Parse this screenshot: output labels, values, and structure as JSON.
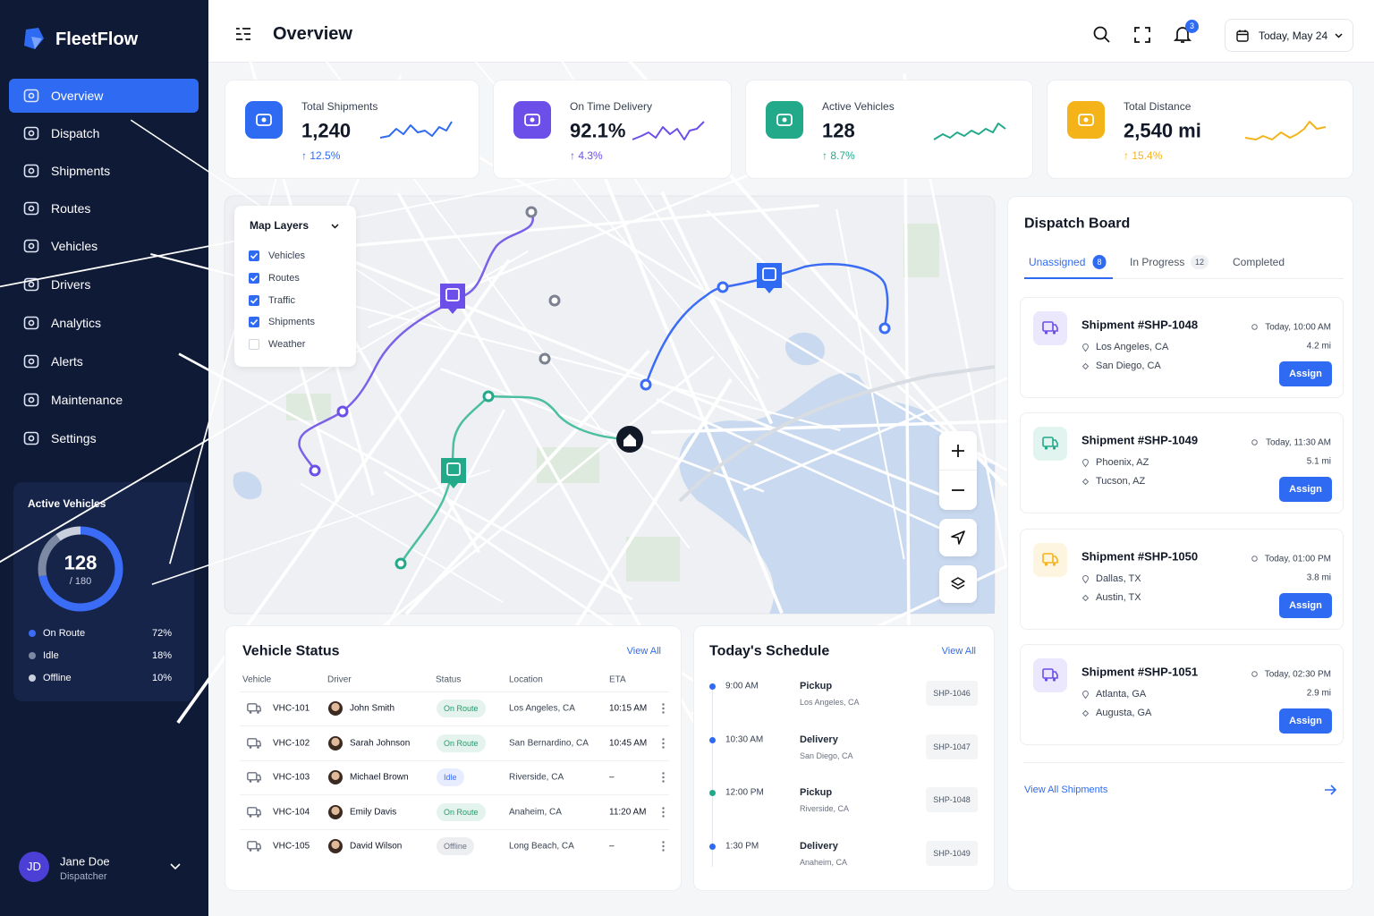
{
  "brand": "FleetFlow",
  "nav": [
    "Overview",
    "Dispatch",
    "Shipments",
    "Routes",
    "Vehicles",
    "Drivers",
    "Analytics",
    "Alerts",
    "Maintenance",
    "Settings"
  ],
  "sidebar_widget": {
    "title": "Active Vehicles",
    "value": "128",
    "total_label": "/ 180",
    "names": [
      "On Route",
      "Idle",
      "Offline"
    ],
    "values": [
      72,
      18,
      10
    ],
    "value_labels": [
      "72%",
      "18%",
      "10%"
    ],
    "colors": [
      "#3b6cf6",
      "#7d88a3",
      "#c9cfdc"
    ]
  },
  "user": {
    "initials": "JD",
    "name": "Jane Doe",
    "role": "Dispatcher"
  },
  "header": {
    "title": "Overview",
    "notifications": "3",
    "date": "Today, May 24"
  },
  "kpis": [
    {
      "label": "Total Shipments",
      "value": "1,240",
      "change": "↑ 12.5%",
      "color": "#2f6bf2"
    },
    {
      "label": "On Time Delivery",
      "value": "92.1%",
      "change": "↑ 4.3%",
      "color": "#6c4ee8"
    },
    {
      "label": "Active Vehicles",
      "value": "128",
      "change": "↑ 8.7%",
      "color": "#22a98a"
    },
    {
      "label": "Total Distance",
      "value": "2,540 mi",
      "change": "↑ 15.4%",
      "color": "#f5b31a"
    }
  ],
  "map": {
    "layers_title": "Map Layers",
    "layers": [
      {
        "label": "Vehicles",
        "checked": true
      },
      {
        "label": "Routes",
        "checked": true
      },
      {
        "label": "Traffic",
        "checked": true
      },
      {
        "label": "Shipments",
        "checked": true
      },
      {
        "label": "Weather",
        "checked": false
      }
    ]
  },
  "vehicle_status": {
    "title": "Vehicle Status",
    "view_all": "View All",
    "columns": [
      "Vehicle",
      "Driver",
      "Status",
      "Location",
      "ETA"
    ],
    "rows": [
      {
        "vehicle": "VHC-101",
        "driver": "John Smith",
        "status": "On Route",
        "status_color": "#1f9d6c",
        "location": "Los Angeles, CA",
        "eta": "10:15 AM"
      },
      {
        "vehicle": "VHC-102",
        "driver": "Sarah Johnson",
        "status": "On Route",
        "status_color": "#1f9d6c",
        "location": "San Bernardino, CA",
        "eta": "10:45 AM"
      },
      {
        "vehicle": "VHC-103",
        "driver": "Michael Brown",
        "status": "Idle",
        "status_color": "#3b6cf6",
        "location": "Riverside, CA",
        "eta": "–"
      },
      {
        "vehicle": "VHC-104",
        "driver": "Emily Davis",
        "status": "On Route",
        "status_color": "#1f9d6c",
        "location": "Anaheim, CA",
        "eta": "11:20 AM"
      },
      {
        "vehicle": "VHC-105",
        "driver": "David Wilson",
        "status": "Offline",
        "status_color": "#6b7280",
        "location": "Long Beach, CA",
        "eta": "–"
      }
    ]
  },
  "schedule": {
    "title": "Today's Schedule",
    "view_all": "View All",
    "items": [
      {
        "time": "9:00 AM",
        "type": "Pickup",
        "place": "Los Angeles, CA",
        "id": "SHP-1046",
        "color": "#2f6bf2"
      },
      {
        "time": "10:30 AM",
        "type": "Delivery",
        "place": "San Diego, CA",
        "id": "SHP-1047",
        "color": "#2f6bf2"
      },
      {
        "time": "12:00 PM",
        "type": "Pickup",
        "place": "Riverside, CA",
        "id": "SHP-1048",
        "color": "#22a98a"
      },
      {
        "time": "1:30 PM",
        "type": "Delivery",
        "place": "Anaheim, CA",
        "id": "SHP-1049",
        "color": "#2f6bf2"
      }
    ]
  },
  "dispatch": {
    "title": "Dispatch Board",
    "tabs": [
      {
        "label": "Unassigned",
        "count": "8"
      },
      {
        "label": "In Progress",
        "count": "12"
      },
      {
        "label": "Completed"
      }
    ],
    "shipments": [
      {
        "title": "Shipment #SHP-1048",
        "time": "Today, 10:00 AM",
        "distance": "4.2 mi",
        "from": "Los Angeles, CA",
        "to": "San Diego, CA",
        "action": "Assign",
        "color": "#6c4ee8"
      },
      {
        "title": "Shipment #SHP-1049",
        "time": "Today, 11:30 AM",
        "distance": "5.1 mi",
        "from": "Phoenix, AZ",
        "to": "Tucson, AZ",
        "action": "Assign",
        "color": "#22a98a"
      },
      {
        "title": "Shipment #SHP-1050",
        "time": "Today, 01:00 PM",
        "distance": "3.8 mi",
        "from": "Dallas, TX",
        "to": "Austin, TX",
        "action": "Assign",
        "color": "#f5b31a"
      },
      {
        "title": "Shipment #SHP-1051",
        "time": "Today, 02:30 PM",
        "distance": "2.9 mi",
        "from": "Atlanta, GA",
        "to": "Augusta, GA",
        "action": "Assign",
        "color": "#6c4ee8"
      }
    ],
    "footer": "View All Shipments"
  }
}
